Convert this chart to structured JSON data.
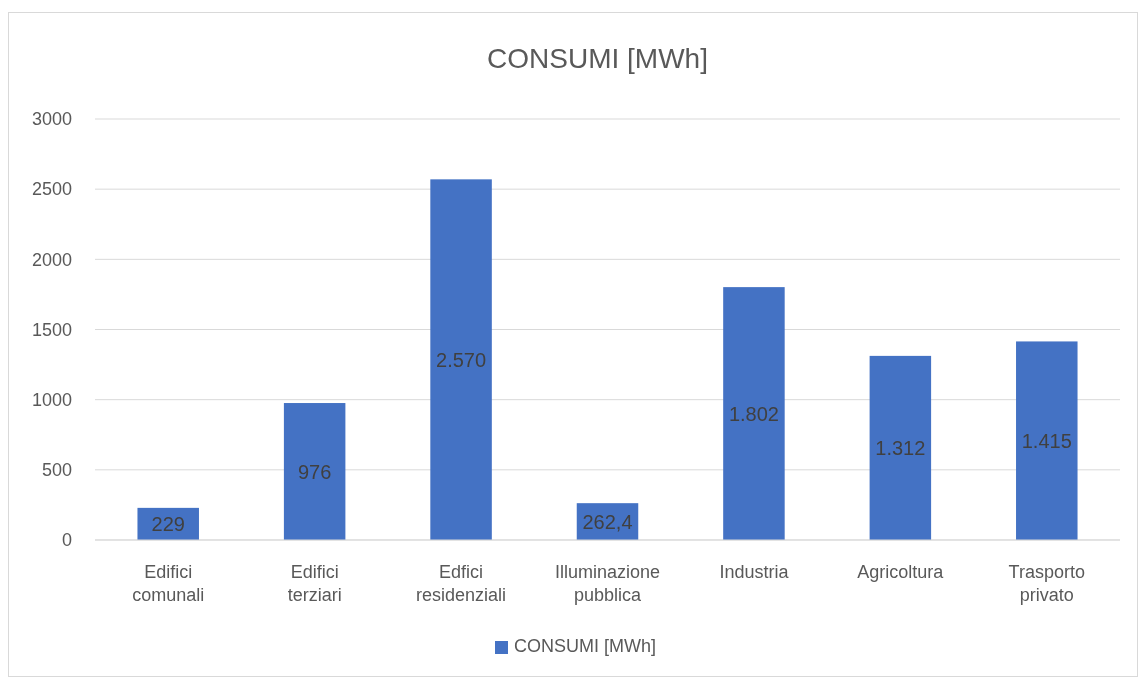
{
  "chart_data": {
    "type": "bar",
    "title": "CONSUMI [MWh]",
    "categories": [
      "Edifici comunali",
      "Edifici terziari",
      "Edfici residenziali",
      "Illuminazione pubblica",
      "Industria",
      "Agricoltura",
      "Trasporto privato"
    ],
    "series": [
      {
        "name": "CONSUMI [MWh]",
        "color": "#4472c4",
        "values": [
          229,
          976,
          2570,
          262.4,
          1802,
          1312,
          1415
        ],
        "value_labels": [
          "229",
          "976",
          "2.570",
          "262,4",
          "1.802",
          "1.312",
          "1.415"
        ]
      }
    ],
    "ylim": [
      0,
      3000
    ],
    "yticks": [
      0,
      500,
      1000,
      1500,
      2000,
      2500,
      3000
    ],
    "grid": "y",
    "legend": "bottom"
  }
}
